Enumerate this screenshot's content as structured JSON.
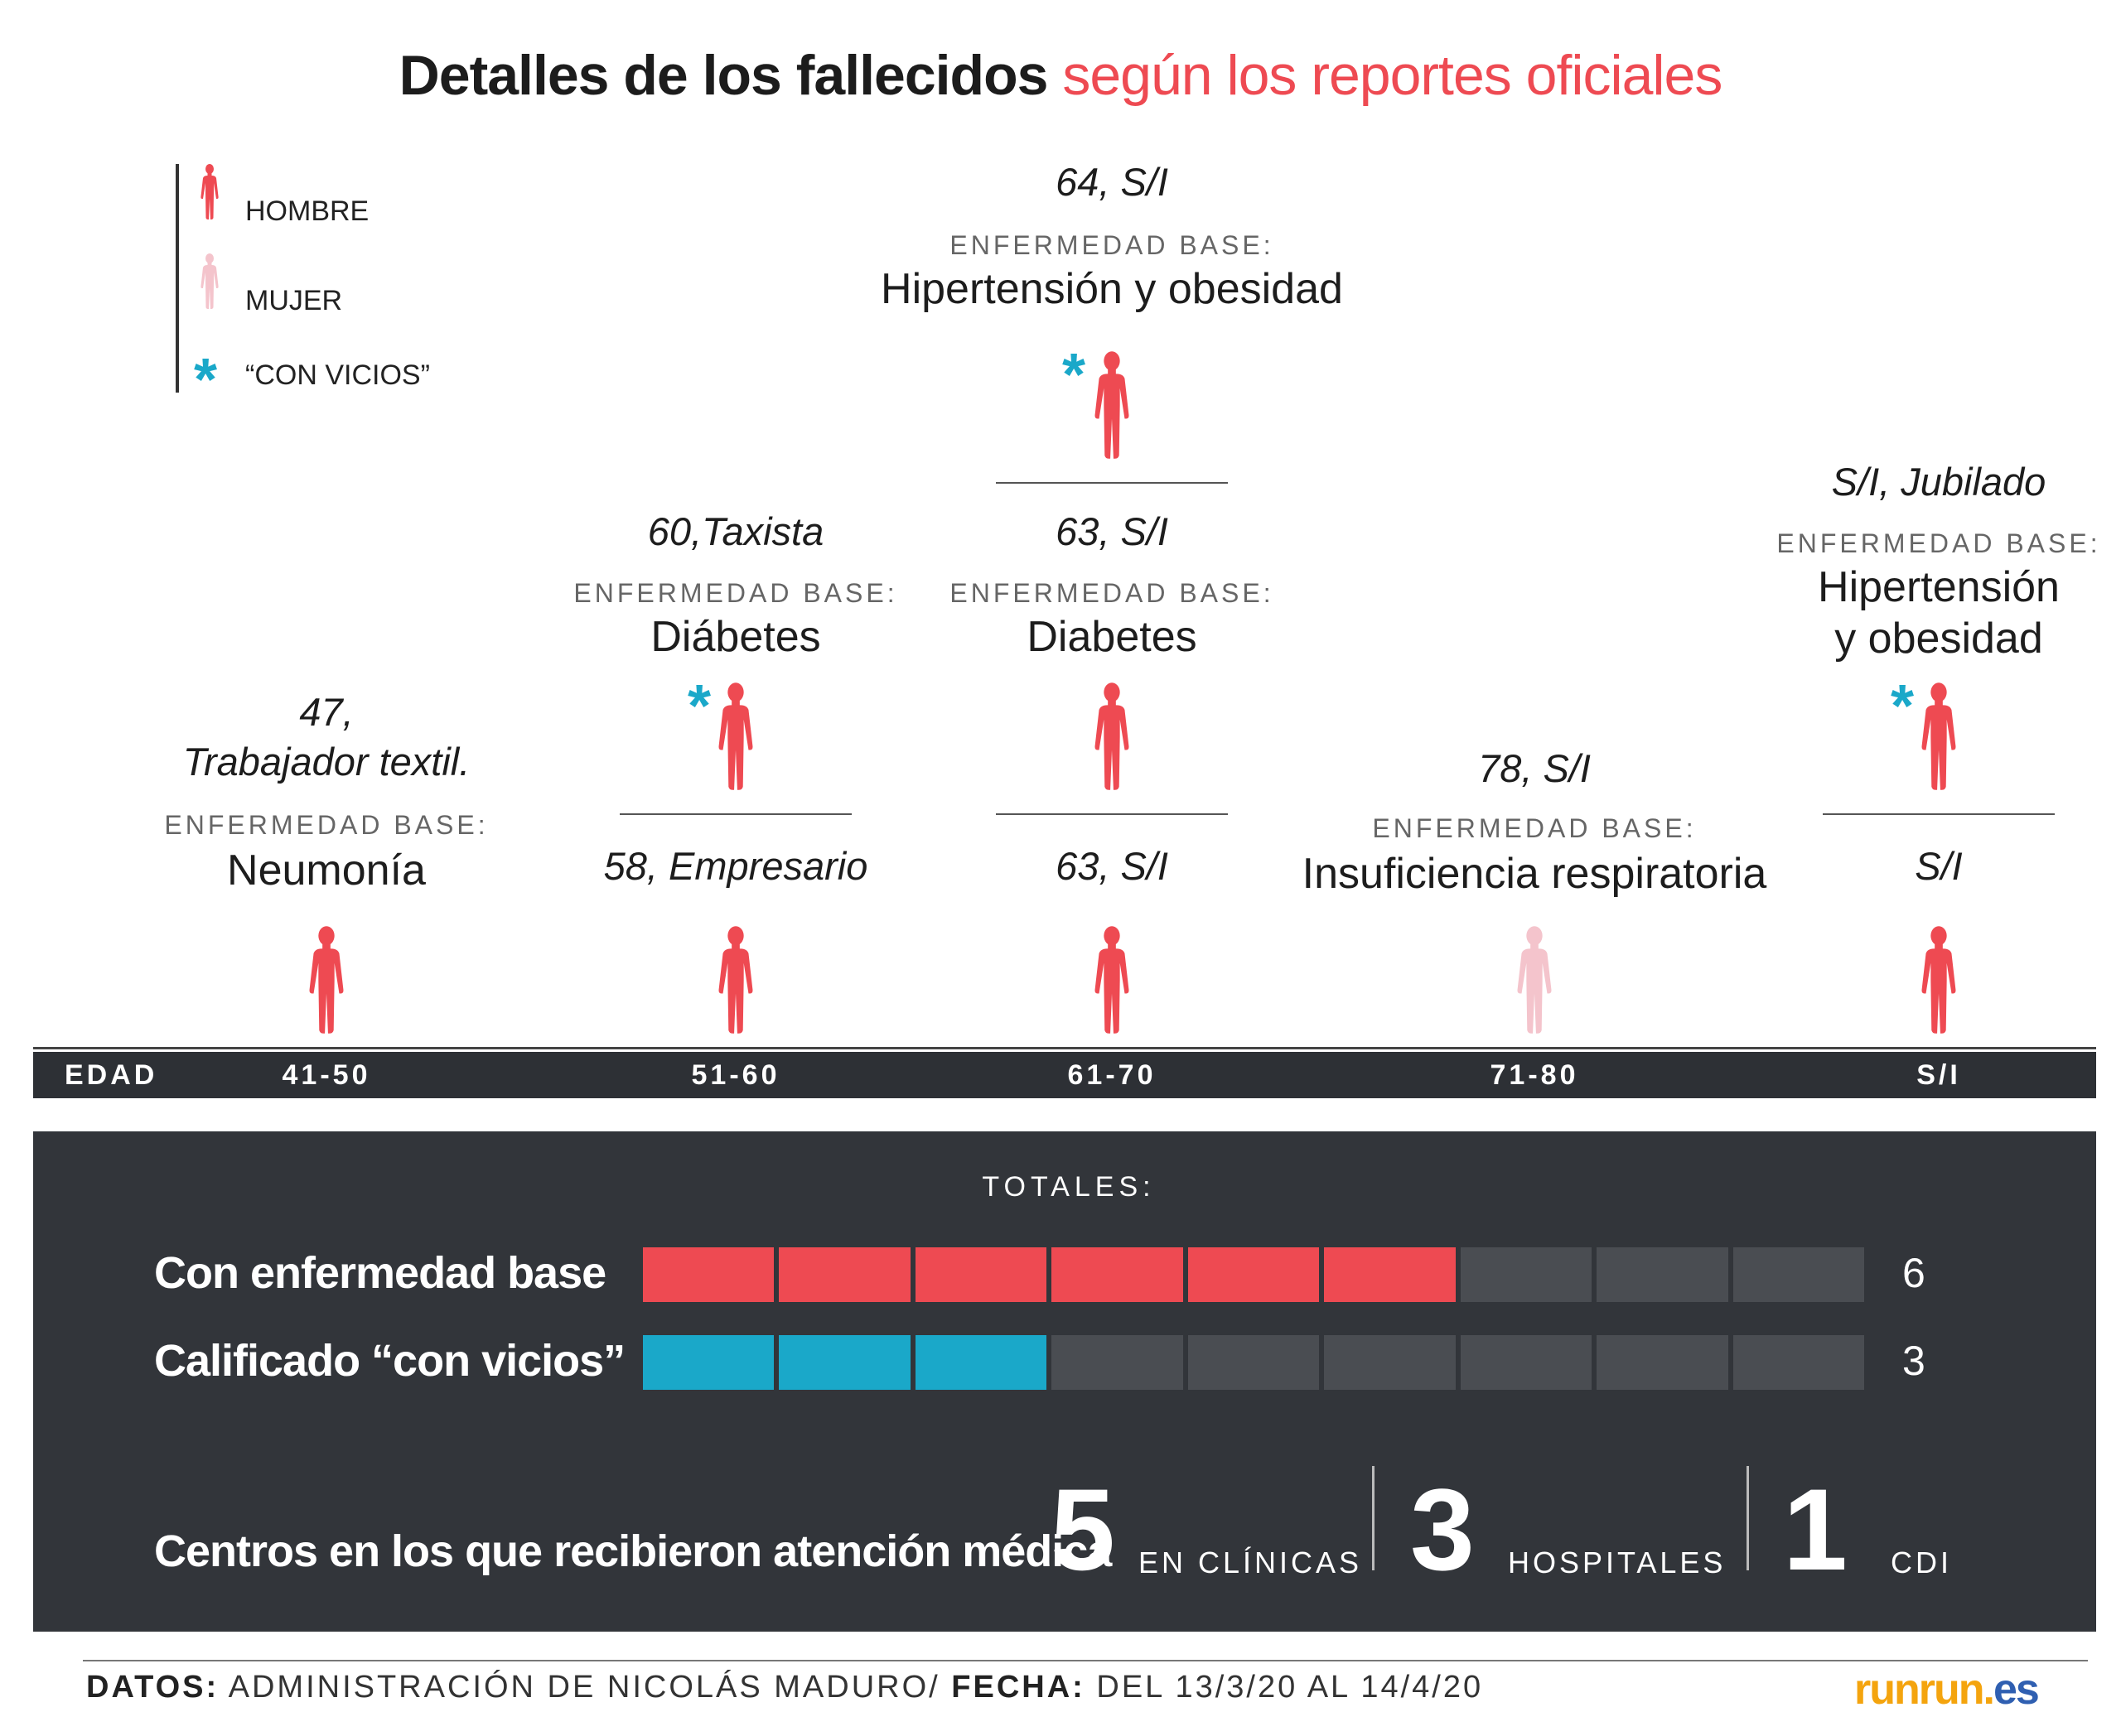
{
  "title": {
    "part1": "Detalles de los fallecidos",
    "part2": "según los reportes oficiales"
  },
  "legend": {
    "male": "HOMBRE",
    "female": "MUJER",
    "vice": "“CON VICIOS”"
  },
  "colors": {
    "male": "#ee4a52",
    "female": "#f4c4cc",
    "vice": "#1aa8c9",
    "empty": "#4a4d52",
    "panel": "#32353a"
  },
  "icons": {
    "male": "male-figure-icon",
    "female": "female-figure-icon",
    "vice": "asterisk-icon"
  },
  "eb_label": "ENFERMEDAD BASE:",
  "cases": {
    "c4150": {
      "caption": "47,\nTrabajador textil.",
      "disease": "Neumonía"
    },
    "c5160a": {
      "caption": "58, Empresario"
    },
    "c5160b": {
      "caption": "60,Taxista",
      "disease": "Diábetes"
    },
    "c6170a": {
      "caption": "63, S/I"
    },
    "c6170b": {
      "caption": "63, S/I",
      "disease": "Diabetes"
    },
    "c6170c": {
      "caption": "64, S/I",
      "disease": "Hipertensión y obesidad"
    },
    "c7180": {
      "caption": "78, S/I",
      "disease": "Insuficiencia respiratoria"
    },
    "csia": {
      "caption": "S/I"
    },
    "csib": {
      "caption": "S/I, Jubilado",
      "disease": "Hipertensión\ny obesidad"
    }
  },
  "axis": {
    "label": "EDAD",
    "groups": [
      "41-50",
      "51-60",
      "61-70",
      "71-80",
      "S/I"
    ]
  },
  "totals": {
    "title": "TOTALES:",
    "rows": [
      {
        "label": "Con enfermedad base",
        "value": "6"
      },
      {
        "label": "Calificado “con vicios”",
        "value": "3"
      }
    ]
  },
  "centers": {
    "label": "Centros en los que recibieron atención médica",
    "items": [
      {
        "number": "5",
        "label": "EN CLÍNICAS"
      },
      {
        "number": "3",
        "label": "HOSPITALES"
      },
      {
        "number": "1",
        "label": "CDI"
      }
    ]
  },
  "footer": {
    "datos_label": "DATOS:",
    "datos_value": "ADMINISTRACIÓN DE NICOLÁS MADURO/",
    "fecha_label": "FECHA:",
    "fecha_value": "DEL 13/3/20 AL 14/4/20",
    "logo_main": "runrun.",
    "logo_es": "es"
  },
  "chart_data": {
    "type": "table",
    "title": "Detalles de los fallecidos según los reportes oficiales",
    "xlabel": "EDAD",
    "categories": [
      "41-50",
      "51-60",
      "61-70",
      "71-80",
      "S/I"
    ],
    "values": [
      1,
      2,
      3,
      1,
      2
    ],
    "records": [
      {
        "age_group": "41-50",
        "gender": "hombre",
        "con_vicios": false,
        "caption": "47, Trabajador textil.",
        "enfermedad_base": "Neumonía"
      },
      {
        "age_group": "51-60",
        "gender": "hombre",
        "con_vicios": false,
        "caption": "58, Empresario"
      },
      {
        "age_group": "51-60",
        "gender": "hombre",
        "con_vicios": true,
        "caption": "60,Taxista",
        "enfermedad_base": "Diábetes"
      },
      {
        "age_group": "61-70",
        "gender": "hombre",
        "con_vicios": false,
        "caption": "63, S/I"
      },
      {
        "age_group": "61-70",
        "gender": "hombre",
        "con_vicios": false,
        "caption": "63, S/I",
        "enfermedad_base": "Diabetes"
      },
      {
        "age_group": "61-70",
        "gender": "hombre",
        "con_vicios": true,
        "caption": "64, S/I",
        "enfermedad_base": "Hipertensión y obesidad"
      },
      {
        "age_group": "71-80",
        "gender": "mujer",
        "con_vicios": false,
        "caption": "78, S/I",
        "enfermedad_base": "Insuficiencia respiratoria"
      },
      {
        "age_group": "S/I",
        "gender": "hombre",
        "con_vicios": false,
        "caption": "S/I"
      },
      {
        "age_group": "S/I",
        "gender": "hombre",
        "con_vicios": true,
        "caption": "S/I, Jubilado",
        "enfermedad_base": "Hipertensión y obesidad"
      }
    ],
    "totals": {
      "max": 9,
      "con_enfermedad_base": 6,
      "con_vicios": 3
    },
    "centros": {
      "en_clinicas": 5,
      "hospitales": 3,
      "cdi": 1
    }
  }
}
